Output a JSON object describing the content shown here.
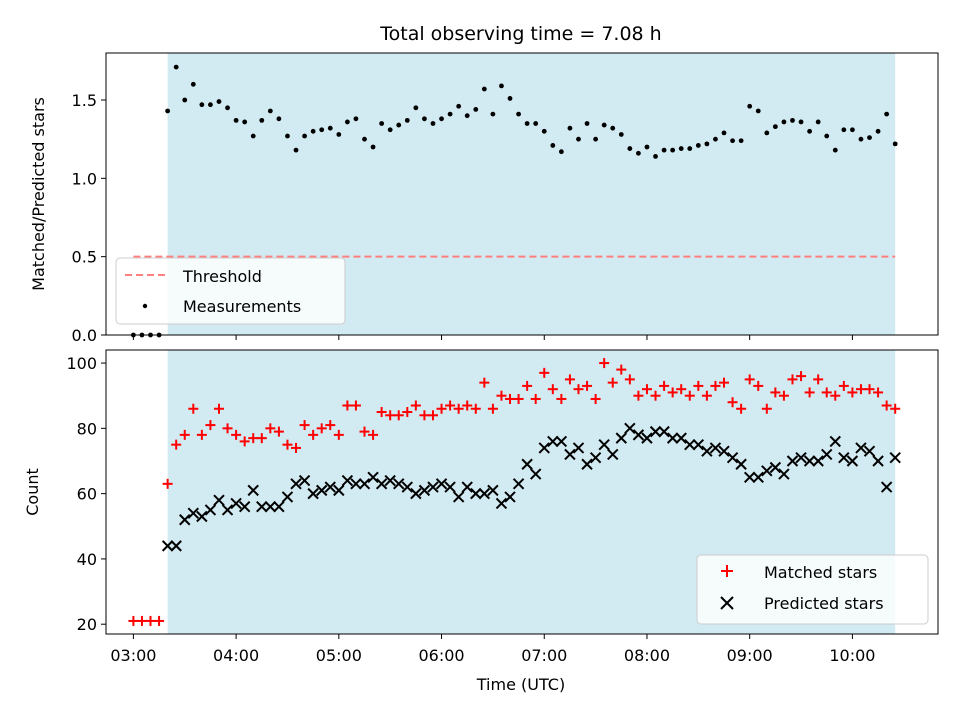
{
  "title": "Total observing time = 7.08 h",
  "colors": {
    "observing_band": "#add8e6",
    "threshold": "#ff7f7f",
    "measurements": "#000000",
    "matched": "#ff0000",
    "predicted": "#000000"
  },
  "chart_data": [
    {
      "type": "scatter",
      "panel": "top",
      "ylabel": "Matched/Predicted stars",
      "xlim": [
        "02:44",
        "10:50"
      ],
      "ylim": [
        0,
        1.8
      ],
      "yticks": [
        "0.0",
        "0.5",
        "1.0",
        "1.5"
      ],
      "observing_window": [
        "03:20",
        "10:25"
      ],
      "threshold": 0.5,
      "threshold_xrange": [
        "03:00",
        "10:25"
      ],
      "legend": {
        "position": "lower-left",
        "entries": [
          "Threshold",
          "Measurements"
        ]
      },
      "series": [
        {
          "name": "Measurements",
          "x": [
            "03:00",
            "03:05",
            "03:10",
            "03:15",
            "03:20",
            "03:25",
            "03:30",
            "03:35",
            "03:40",
            "03:45",
            "03:50",
            "03:55",
            "04:00",
            "04:05",
            "04:10",
            "04:15",
            "04:20",
            "04:25",
            "04:30",
            "04:35",
            "04:40",
            "04:45",
            "04:50",
            "04:55",
            "05:00",
            "05:05",
            "05:10",
            "05:15",
            "05:20",
            "05:25",
            "05:30",
            "05:35",
            "05:40",
            "05:45",
            "05:50",
            "05:55",
            "06:00",
            "06:05",
            "06:10",
            "06:15",
            "06:20",
            "06:25",
            "06:30",
            "06:35",
            "06:40",
            "06:45",
            "06:50",
            "06:55",
            "07:00",
            "07:05",
            "07:10",
            "07:15",
            "07:20",
            "07:25",
            "07:30",
            "07:35",
            "07:40",
            "07:45",
            "07:50",
            "07:55",
            "08:00",
            "08:05",
            "08:10",
            "08:15",
            "08:20",
            "08:25",
            "08:30",
            "08:35",
            "08:40",
            "08:45",
            "08:50",
            "08:55",
            "09:00",
            "09:05",
            "09:10",
            "09:15",
            "09:20",
            "09:25",
            "09:30",
            "09:35",
            "09:40",
            "09:45",
            "09:50",
            "09:55",
            "10:00",
            "10:05",
            "10:10",
            "10:15",
            "10:20",
            "10:25"
          ],
          "y": [
            0.0,
            0.0,
            0.0,
            0.0,
            1.43,
            1.71,
            1.5,
            1.6,
            1.47,
            1.47,
            1.49,
            1.45,
            1.37,
            1.36,
            1.27,
            1.37,
            1.43,
            1.38,
            1.27,
            1.18,
            1.27,
            1.3,
            1.31,
            1.32,
            1.28,
            1.36,
            1.38,
            1.25,
            1.2,
            1.35,
            1.31,
            1.34,
            1.37,
            1.45,
            1.38,
            1.35,
            1.38,
            1.41,
            1.46,
            1.4,
            1.44,
            1.57,
            1.41,
            1.59,
            1.51,
            1.41,
            1.35,
            1.35,
            1.3,
            1.21,
            1.17,
            1.32,
            1.25,
            1.35,
            1.25,
            1.34,
            1.32,
            1.28,
            1.19,
            1.16,
            1.2,
            1.14,
            1.18,
            1.18,
            1.19,
            1.19,
            1.21,
            1.22,
            1.25,
            1.29,
            1.24,
            1.24,
            1.46,
            1.43,
            1.29,
            1.33,
            1.36,
            1.37,
            1.36,
            1.3,
            1.36,
            1.27,
            1.18,
            1.31,
            1.31,
            1.25,
            1.26,
            1.3,
            1.41,
            1.22
          ]
        }
      ]
    },
    {
      "type": "scatter",
      "panel": "bottom",
      "xlabel": "Time (UTC)",
      "ylabel": "Count",
      "xlim": [
        "02:44",
        "10:50"
      ],
      "ylim": [
        17,
        104
      ],
      "xticks": [
        "03:00",
        "04:00",
        "05:00",
        "06:00",
        "07:00",
        "08:00",
        "09:00",
        "10:00"
      ],
      "yticks": [
        "20",
        "40",
        "60",
        "80",
        "100"
      ],
      "observing_window": [
        "03:20",
        "10:25"
      ],
      "legend": {
        "position": "lower-right",
        "entries": [
          "Matched stars",
          "Predicted stars"
        ]
      },
      "x": [
        "03:00",
        "03:05",
        "03:10",
        "03:15",
        "03:20",
        "03:25",
        "03:30",
        "03:35",
        "03:40",
        "03:45",
        "03:50",
        "03:55",
        "04:00",
        "04:05",
        "04:10",
        "04:15",
        "04:20",
        "04:25",
        "04:30",
        "04:35",
        "04:40",
        "04:45",
        "04:50",
        "04:55",
        "05:00",
        "05:05",
        "05:10",
        "05:15",
        "05:20",
        "05:25",
        "05:30",
        "05:35",
        "05:40",
        "05:45",
        "05:50",
        "05:55",
        "06:00",
        "06:05",
        "06:10",
        "06:15",
        "06:20",
        "06:25",
        "06:30",
        "06:35",
        "06:40",
        "06:45",
        "06:50",
        "06:55",
        "07:00",
        "07:05",
        "07:10",
        "07:15",
        "07:20",
        "07:25",
        "07:30",
        "07:35",
        "07:40",
        "07:45",
        "07:50",
        "07:55",
        "08:00",
        "08:05",
        "08:10",
        "08:15",
        "08:20",
        "08:25",
        "08:30",
        "08:35",
        "08:40",
        "08:45",
        "08:50",
        "08:55",
        "09:00",
        "09:05",
        "09:10",
        "09:15",
        "09:20",
        "09:25",
        "09:30",
        "09:35",
        "09:40",
        "09:45",
        "09:50",
        "09:55",
        "10:00",
        "10:05",
        "10:10",
        "10:15",
        "10:20",
        "10:25"
      ],
      "series": [
        {
          "name": "Matched stars",
          "marker": "plus",
          "y": [
            21,
            21,
            21,
            21,
            63,
            75,
            78,
            86,
            78,
            81,
            86,
            80,
            78,
            76,
            77,
            77,
            80,
            79,
            75,
            74,
            81,
            78,
            80,
            81,
            78,
            87,
            87,
            79,
            78,
            85,
            84,
            84,
            85,
            87,
            84,
            84,
            86,
            87,
            86,
            87,
            86,
            94,
            86,
            90,
            89,
            89,
            93,
            89,
            97,
            92,
            89,
            95,
            92,
            93,
            89,
            100,
            94,
            98,
            95,
            90,
            92,
            90,
            93,
            91,
            92,
            90,
            93,
            90,
            93,
            94,
            88,
            86,
            95,
            93,
            86,
            91,
            90,
            95,
            96,
            91,
            95,
            91,
            90,
            93,
            91,
            92,
            92,
            91,
            87,
            86
          ]
        },
        {
          "name": "Predicted stars",
          "marker": "x",
          "y": [
            null,
            null,
            null,
            null,
            44,
            44,
            52,
            54,
            53,
            55,
            58,
            55,
            57,
            56,
            61,
            56,
            56,
            56,
            59,
            63,
            64,
            60,
            61,
            62,
            61,
            64,
            63,
            63,
            65,
            63,
            64,
            63,
            62,
            60,
            61,
            62,
            63,
            62,
            59,
            62,
            60,
            60,
            61,
            57,
            59,
            63,
            69,
            66,
            74,
            76,
            76,
            72,
            74,
            69,
            71,
            75,
            72,
            77,
            80,
            78,
            77,
            79,
            79,
            77,
            77,
            75,
            75,
            73,
            74,
            73,
            71,
            69,
            65,
            65,
            67,
            68,
            66,
            70,
            71,
            70,
            70,
            72,
            76,
            71,
            70,
            74,
            73,
            70,
            62,
            71
          ]
        }
      ]
    }
  ]
}
